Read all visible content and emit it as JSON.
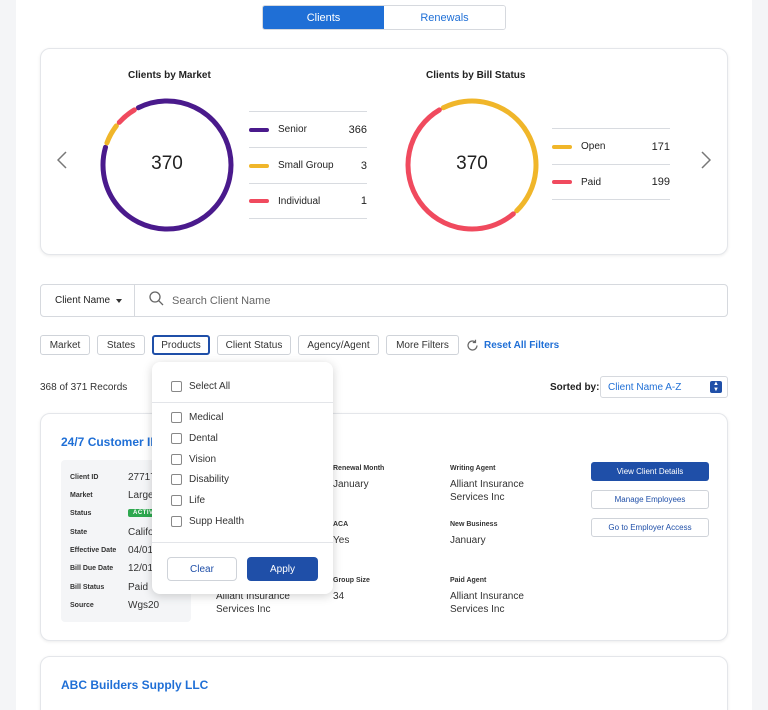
{
  "tabs": [
    {
      "label": "Clients",
      "active": true
    },
    {
      "label": "Renewals",
      "active": false
    }
  ],
  "summary": {
    "market": {
      "title": "Clients by Market",
      "total": "370",
      "legend": [
        {
          "label": "Senior",
          "value": "366",
          "color": "#4a1a8c"
        },
        {
          "label": "Small Group",
          "value": "3",
          "color": "#f0b62a"
        },
        {
          "label": "Individual",
          "value": "1",
          "color": "#f04a5e"
        }
      ]
    },
    "bill": {
      "title": "Clients by Bill Status",
      "total": "370",
      "legend": [
        {
          "label": "Open",
          "value": "171",
          "color": "#f0b62a"
        },
        {
          "label": "Paid",
          "value": "199",
          "color": "#f04a5e"
        }
      ]
    }
  },
  "chart_data": [
    {
      "type": "pie",
      "title": "Clients by Market",
      "categories": [
        "Senior",
        "Small Group",
        "Individual"
      ],
      "values": [
        366,
        3,
        1
      ],
      "total": 370
    },
    {
      "type": "pie",
      "title": "Clients by Bill Status",
      "categories": [
        "Open",
        "Paid"
      ],
      "values": [
        171,
        199
      ],
      "total": 370
    }
  ],
  "search": {
    "field": "Client Name",
    "placeholder": "Search Client Name"
  },
  "filters": {
    "chips": [
      "Market",
      "States",
      "Products",
      "Client Status",
      "Agency/Agent",
      "More Filters"
    ],
    "reset": "Reset All Filters"
  },
  "records": "368 of 371 Records",
  "sort": {
    "label": "Sorted by:",
    "value": "Client Name A-Z"
  },
  "products_dropdown": {
    "select_all": "Select All",
    "options": [
      "Medical",
      "Dental",
      "Vision",
      "Disability",
      "Life",
      "Supp Health"
    ],
    "clear": "Clear",
    "apply": "Apply"
  },
  "client1": {
    "name": "24/7 Customer INC",
    "info": [
      {
        "label": "Client ID",
        "value": "27717"
      },
      {
        "label": "Market",
        "value": "Large"
      },
      {
        "label": "Status",
        "value": "ACTIVE"
      },
      {
        "label": "State",
        "value": "Califo"
      },
      {
        "label": "Effective Date",
        "value": "04/01"
      },
      {
        "label": "Bill Due Date",
        "value": "12/01"
      },
      {
        "label": "Bill Status",
        "value": "Paid"
      },
      {
        "label": "Source",
        "value": "Wgs20"
      }
    ],
    "fields": {
      "renewal_month": {
        "label": "Renewal Month",
        "value": "January"
      },
      "writing_agent": {
        "label": "Writing Agent",
        "value": "Alliant Insurance Services Inc"
      },
      "aca": {
        "label": "ACA",
        "value": "Yes"
      },
      "new_business": {
        "label": "New Business",
        "value": "January"
      },
      "group_size": {
        "label": "Group Size",
        "value": "34"
      },
      "paid_agent": {
        "label": "Paid Agent",
        "value": "Alliant Insurance Services Inc"
      },
      "agency": {
        "value": "Alliant Insurance Services Inc"
      }
    },
    "buttons": {
      "view": "View Client Details",
      "manage": "Manage Employees",
      "access": "Go to Employer Access"
    }
  },
  "client2": {
    "name": "ABC Builders Supply LLC"
  }
}
